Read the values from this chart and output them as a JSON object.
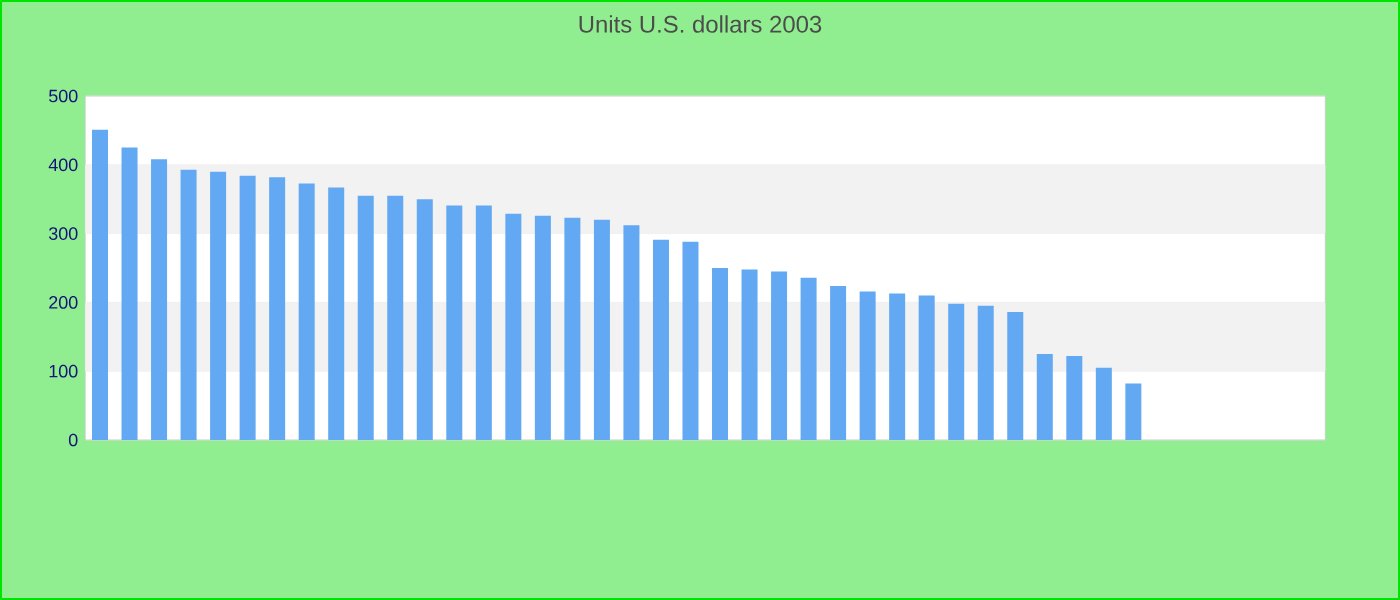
{
  "chart_data": {
    "type": "bar",
    "title": "Units U.S. dollars 2003",
    "categories": [
      null,
      null,
      null,
      null,
      null,
      null,
      null,
      null,
      null,
      null,
      null,
      null,
      null,
      null,
      null,
      null,
      null,
      null,
      null,
      null,
      null,
      null,
      null,
      null,
      null,
      null,
      null,
      null,
      null,
      null,
      null,
      null,
      null,
      null,
      null,
      null
    ],
    "values": [
      451,
      425,
      408,
      393,
      390,
      384,
      382,
      373,
      367,
      355,
      355,
      350,
      341,
      341,
      329,
      326,
      323,
      320,
      312,
      291,
      288,
      250,
      248,
      245,
      236,
      224,
      216,
      213,
      210,
      198,
      195,
      186,
      125,
      122,
      105,
      82
    ],
    "color": "#62a8f2",
    "ylim": [
      0,
      500
    ],
    "yticks": [
      0,
      100,
      200,
      300,
      400,
      500
    ],
    "grid": "y"
  }
}
